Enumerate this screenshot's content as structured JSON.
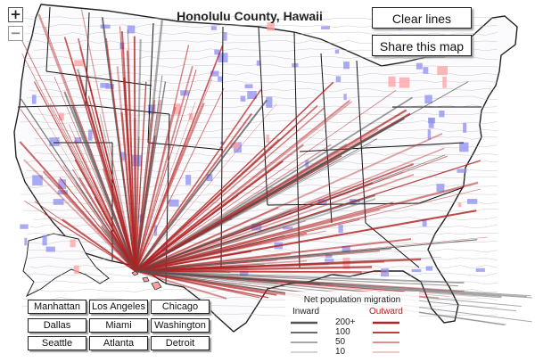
{
  "title": "Honolulu County, Hawaii",
  "controls": {
    "zoom_in": "+",
    "zoom_out": "−",
    "clear": "Clear lines",
    "share": "Share this map"
  },
  "cities": [
    "Manhattan",
    "Los Angeles",
    "Chicago",
    "Dallas",
    "Miami",
    "Washington",
    "Seattle",
    "Atlanta",
    "Detroit"
  ],
  "legend": {
    "title": "Net population migration",
    "inward": "Inward",
    "outward": "Outward",
    "levels": [
      "200+",
      "100",
      "50",
      "10"
    ],
    "inward_color": "#555555",
    "outward_color": "#b22222"
  },
  "colors": {
    "outward_line": "#b22222",
    "inward_line": "#555555",
    "county_fill": "#8f8ff0",
    "county_fill_light": "#ff9fa0"
  }
}
